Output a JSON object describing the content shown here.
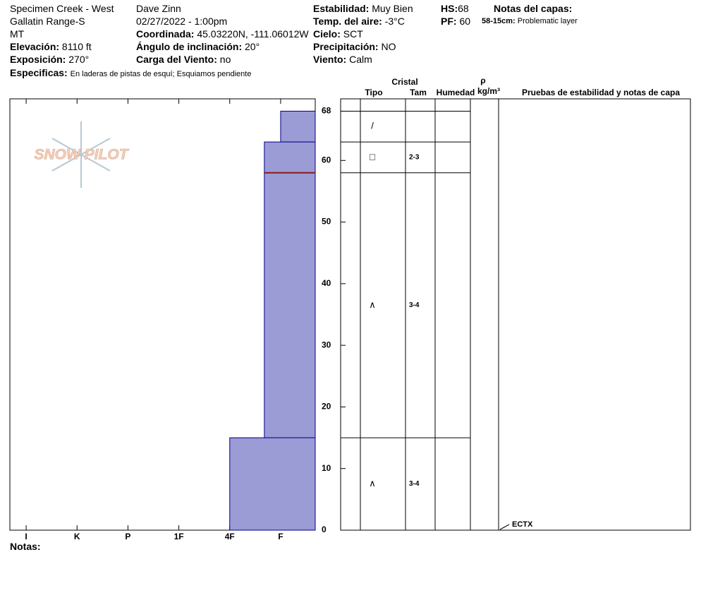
{
  "header": {
    "location": "Specimen Creek - West",
    "range": "Gallatin Range-S",
    "state": "MT",
    "elevation_label": "Elevación:",
    "elevation": "8110 ft",
    "aspect_label": "Exposición:",
    "aspect": "270°",
    "observer": "Dave Zinn",
    "datetime": "02/27/2022 - 1:00pm",
    "coord_label": "Coordinada:",
    "coord": "45.03220N, -111.06012W",
    "slope_label": "Ángulo de inclinación:",
    "slope": "20°",
    "wind_load_label": "Carga del Viento:",
    "wind_load": "no",
    "stability_label": "Estabilidad:",
    "stability": "Muy Bien",
    "air_temp_label": "Temp. del aire:",
    "air_temp": "-3°C",
    "sky_label": "Cielo:",
    "sky": "SCT",
    "precip_label": "Precipitación:",
    "precip": "NO",
    "wind_label": "Viento:",
    "wind": "Calm",
    "hs_label": "HS:",
    "hs": 68,
    "pf_label": "PF:",
    "pf": 60,
    "notes_title": "Notas del capas:",
    "layer_note_depth": "58-15cm:",
    "layer_note": "Problematic layer",
    "specifics_label": "Especificas:",
    "specifics": "En laderas de pistas de esquí; Esquiamos pendiente"
  },
  "logo": "SNOW PILOT",
  "notes_label": "Notas:",
  "chart_data": {
    "type": "snow-profile",
    "ylim": [
      0,
      70
    ],
    "yticks": [
      0,
      10,
      20,
      30,
      40,
      50,
      60,
      68
    ],
    "xlim": [
      0.68,
      6.68
    ],
    "xticks": [
      {
        "value": 1,
        "label": "I"
      },
      {
        "value": 2,
        "label": "K"
      },
      {
        "value": 3,
        "label": "P"
      },
      {
        "value": 4,
        "label": "1F"
      },
      {
        "value": 5,
        "label": "4F"
      },
      {
        "value": 6,
        "label": "F"
      }
    ],
    "color": "#9b9bd6",
    "layers": [
      {
        "bottom": 63,
        "top": 68,
        "hardness": 6,
        "symbol": "/"
      },
      {
        "bottom": 58,
        "top": 63,
        "hardness": 5.68,
        "symbol": "□",
        "size": "2-3"
      },
      {
        "bottom": 15,
        "top": 58,
        "hardness": 5.68,
        "symbol": "∧",
        "size": "3-4"
      },
      {
        "bottom": 0,
        "top": 15,
        "hardness": 5,
        "symbol": "∧",
        "size": "3-4"
      }
    ],
    "problem_depth": 58,
    "problem_color": "#8b1a1a",
    "columns": {
      "crystal": "Cristal",
      "type": "Tipo",
      "size": "Tam",
      "moisture": "Humedad",
      "rho": "ρ",
      "density_unit": "kg/m³",
      "tests": "Pruebas de estabilidad y notas de capa"
    },
    "tests": [
      {
        "height": 0,
        "label": "ECTX"
      }
    ]
  }
}
